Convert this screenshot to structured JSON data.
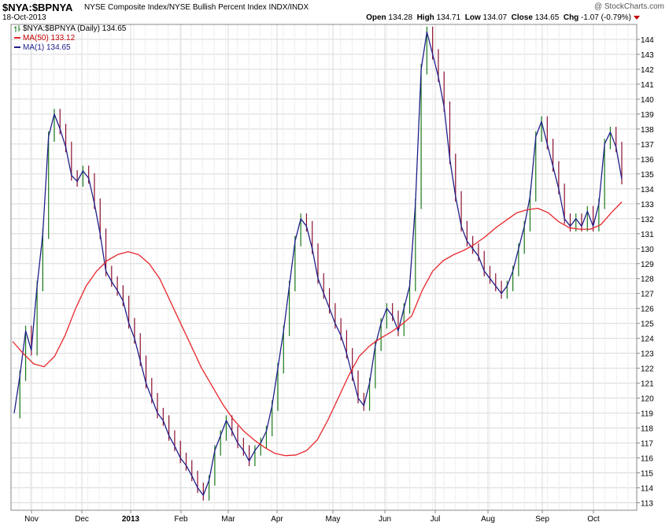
{
  "header": {
    "symbol": "$NYA:$BPNYA",
    "description": "NYSE Composite Index/NYSE Bullish Percent Index  INDX/INDX",
    "date": "18-Oct-2013",
    "brand": "@ StockCharts.com",
    "open_label": "Open",
    "open": "134.28",
    "high_label": "High",
    "high": "134.71",
    "low_label": "Low",
    "low": "134.07",
    "close_label": "Close",
    "close": "134.65",
    "chg_label": "Chg",
    "chg": "-1.07 (-0.79%)"
  },
  "legend": {
    "price": "$NYA:$BPNYA (Daily) 134.65",
    "ma50": "MA(50) 133.12",
    "ma1": "MA(1) 134.65"
  },
  "colors": {
    "ma50": "#e8262b",
    "ma1": "#1f1f8a",
    "up_bar": "#1a7a1a",
    "down_bar": "#8b1030",
    "grid": "#d9d9d9"
  },
  "chart_data": {
    "type": "line",
    "title": "$NYA:$BPNYA",
    "xlabel": "",
    "ylabel": "",
    "ylim": [
      112.5,
      145
    ],
    "y_ticks": [
      113,
      114,
      115,
      116,
      117,
      118,
      119,
      120,
      121,
      122,
      123,
      124,
      125,
      126,
      127,
      128,
      129,
      130,
      131,
      132,
      133,
      134,
      135,
      136,
      137,
      138,
      139,
      140,
      141,
      142,
      143,
      144
    ],
    "x_tick_labels": [
      "Nov",
      "Dec",
      "2013",
      "Feb",
      "Mar",
      "Apr",
      "May",
      "Jun",
      "Jul",
      "Aug",
      "Sep",
      "Oct"
    ],
    "grid": true,
    "legend_position": "top-left",
    "series": [
      {
        "name": "MA(1) 134.65",
        "values": [
          119.0,
          121.5,
          124.5,
          123.2,
          127.5,
          131.0,
          137.5,
          139.0,
          138.0,
          136.8,
          134.9,
          134.5,
          135.2,
          134.7,
          133.0,
          131.0,
          128.5,
          127.8,
          127.2,
          126.5,
          125.0,
          124.0,
          122.5,
          121.0,
          120.0,
          119.0,
          118.5,
          117.5,
          116.8,
          116.0,
          115.5,
          114.8,
          114.0,
          113.5,
          114.5,
          116.5,
          117.5,
          118.5,
          117.8,
          117.0,
          116.5,
          115.8,
          116.5,
          117.0,
          117.8,
          119.5,
          122.0,
          124.5,
          127.5,
          130.5,
          132.0,
          131.5,
          130.0,
          128.0,
          127.0,
          126.0,
          125.0,
          124.2,
          123.0,
          121.5,
          120.0,
          119.5,
          121.0,
          123.5,
          125.0,
          126.0,
          125.5,
          124.5,
          126.0,
          127.5,
          133.0,
          142.0,
          144.5,
          143.0,
          141.5,
          139.5,
          136.0,
          133.5,
          131.5,
          130.5,
          130.0,
          129.5,
          128.5,
          128.0,
          127.5,
          127.0,
          127.5,
          128.5,
          130.0,
          131.5,
          133.5,
          137.5,
          138.5,
          137.0,
          135.5,
          134.0,
          132.0,
          131.5,
          132.0,
          131.5,
          132.5,
          131.5,
          133.0,
          137.0,
          137.8,
          136.8,
          134.65
        ]
      },
      {
        "name": "MA(50) 133.12",
        "values": [
          123.8,
          123.0,
          122.3,
          122.1,
          122.8,
          124.2,
          126.0,
          127.5,
          128.5,
          129.2,
          129.6,
          129.8,
          129.6,
          129.0,
          128.0,
          126.5,
          125.0,
          123.5,
          122.0,
          120.8,
          119.6,
          118.6,
          117.8,
          117.2,
          116.7,
          116.3,
          116.15,
          116.2,
          116.5,
          117.2,
          118.5,
          120.0,
          121.5,
          122.8,
          123.5,
          124.0,
          124.4,
          124.9,
          125.5,
          127.2,
          128.5,
          129.2,
          129.6,
          129.9,
          130.3,
          130.8,
          131.4,
          131.9,
          132.4,
          132.6,
          132.7,
          132.4,
          131.8,
          131.4,
          131.3,
          131.3,
          131.6,
          132.4,
          133.12
        ]
      }
    ]
  }
}
